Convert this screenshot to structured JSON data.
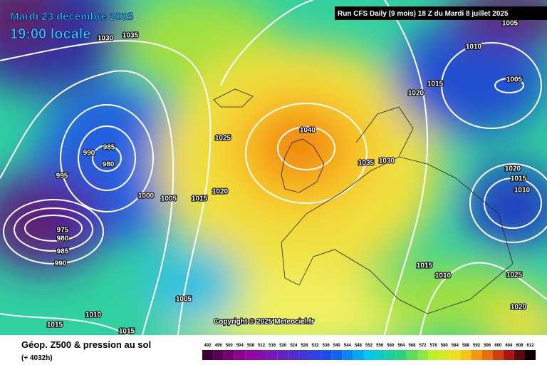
{
  "header": {
    "date": "Mardi 23 décembre 2025",
    "time": "19:00 locale",
    "run": "Run CFS Daily (9 mois) 18 Z du Mardi 8 juillet 2025"
  },
  "copyright": "Copyright © 2025 Meteociel.fr",
  "footer": {
    "title": "Géop. Z500 & pression au sol",
    "lead": "(+ 4032h)"
  },
  "isobar_labels": [
    "1035",
    "1030",
    "1005",
    "1010",
    "1005",
    "1015",
    "1020",
    "1025",
    "1040",
    "985",
    "990",
    "980",
    "995",
    "1035",
    "1030",
    "1020",
    "1015",
    "1010",
    "1000",
    "1005",
    "1015",
    "1020",
    "975",
    "980",
    "985",
    "990",
    "1015",
    "1010",
    "1025",
    "1005",
    "1020",
    "1010",
    "1015",
    "1015"
  ],
  "colorbar": {
    "ticks": [
      492,
      496,
      500,
      504,
      508,
      512,
      516,
      520,
      524,
      528,
      532,
      536,
      540,
      544,
      548,
      552,
      556,
      560,
      564,
      568,
      572,
      576,
      580,
      584,
      588,
      592,
      596,
      600,
      604,
      608,
      612
    ]
  }
}
